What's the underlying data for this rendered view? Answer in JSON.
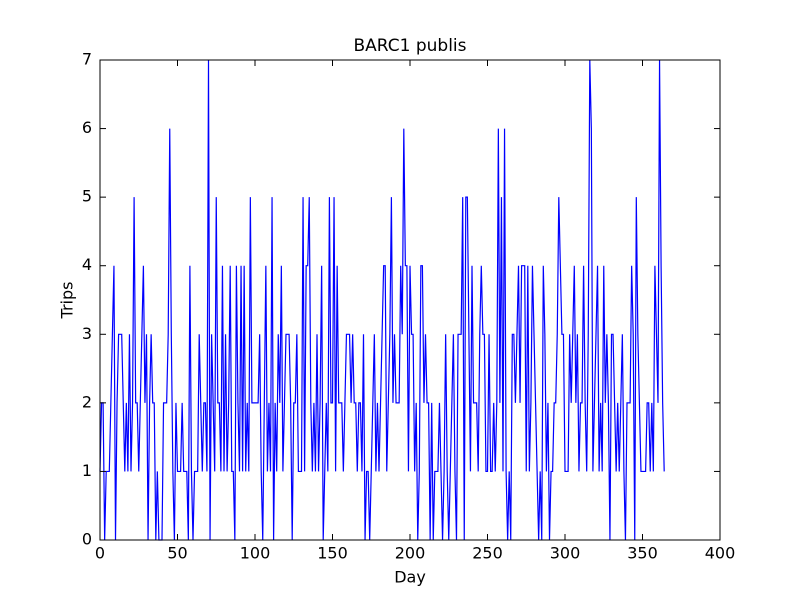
{
  "chart_data": {
    "type": "line",
    "title": "BARC1 publis",
    "x_label": "Day",
    "y_label": "Trips",
    "color": "#0000ff",
    "xlim": [
      0,
      400
    ],
    "xticks": [
      0,
      50,
      100,
      150,
      200,
      250,
      300,
      350,
      400
    ],
    "ylim": [
      0,
      7
    ],
    "yticks": [
      0,
      1,
      2,
      3,
      4,
      5,
      6,
      7
    ],
    "x": [
      0,
      1,
      2,
      3,
      4,
      5,
      6,
      7,
      8,
      9,
      10,
      11,
      12,
      13,
      14,
      15,
      16,
      17,
      18,
      19,
      20,
      21,
      22,
      23,
      24,
      25,
      26,
      27,
      28,
      29,
      30,
      31,
      32,
      33,
      34,
      35,
      36,
      37,
      38,
      39,
      40,
      41,
      42,
      43,
      44,
      45,
      46,
      47,
      48,
      49,
      50,
      51,
      52,
      53,
      54,
      55,
      56,
      57,
      58,
      59,
      60,
      61,
      62,
      63,
      64,
      65,
      66,
      67,
      68,
      69,
      70,
      71,
      72,
      73,
      74,
      75,
      76,
      77,
      78,
      79,
      80,
      81,
      82,
      83,
      84,
      85,
      86,
      87,
      88,
      89,
      90,
      91,
      92,
      93,
      94,
      95,
      96,
      97,
      98,
      99,
      100,
      101,
      102,
      103,
      104,
      105,
      106,
      107,
      108,
      109,
      110,
      111,
      112,
      113,
      114,
      115,
      116,
      117,
      118,
      119,
      120,
      121,
      122,
      123,
      124,
      125,
      126,
      127,
      128,
      129,
      130,
      131,
      132,
      133,
      134,
      135,
      136,
      137,
      138,
      139,
      140,
      141,
      142,
      143,
      144,
      145,
      146,
      147,
      148,
      149,
      150,
      151,
      152,
      153,
      154,
      155,
      156,
      157,
      158,
      159,
      160,
      161,
      162,
      163,
      164,
      165,
      166,
      167,
      168,
      169,
      170,
      171,
      172,
      173,
      174,
      175,
      176,
      177,
      178,
      179,
      180,
      181,
      182,
      183,
      184,
      185,
      186,
      187,
      188,
      189,
      190,
      191,
      192,
      193,
      194,
      195,
      196,
      197,
      198,
      199,
      200,
      201,
      202,
      203,
      204,
      205,
      206,
      207,
      208,
      209,
      210,
      211,
      212,
      213,
      214,
      215,
      216,
      217,
      218,
      219,
      220,
      221,
      222,
      223,
      224,
      225,
      226,
      227,
      228,
      229,
      230,
      231,
      232,
      233,
      234,
      235,
      236,
      237,
      238,
      239,
      240,
      241,
      242,
      243,
      244,
      245,
      246,
      247,
      248,
      249,
      250,
      251,
      252,
      253,
      254,
      255,
      256,
      257,
      258,
      259,
      260,
      261,
      262,
      263,
      264,
      265,
      266,
      267,
      268,
      269,
      270,
      271,
      272,
      273,
      274,
      275,
      276,
      277,
      278,
      279,
      280,
      281,
      282,
      283,
      284,
      285,
      286,
      287,
      288,
      289,
      290,
      291,
      292,
      293,
      294,
      295,
      296,
      297,
      298,
      299,
      300,
      301,
      302,
      303,
      304,
      305,
      306,
      307,
      308,
      309,
      310,
      311,
      312,
      313,
      314,
      315,
      316,
      317,
      318,
      319,
      320,
      321,
      322,
      323,
      324,
      325,
      326,
      327,
      328,
      329,
      330,
      331,
      332,
      333,
      334,
      335,
      336,
      337,
      338,
      339,
      340,
      341,
      342,
      343,
      344,
      345,
      346,
      347,
      348,
      349,
      350,
      351,
      352,
      353,
      354,
      355,
      356,
      357,
      358,
      359,
      360,
      361,
      362,
      363,
      364
    ],
    "values": [
      1,
      2,
      2,
      0,
      1,
      1,
      1,
      2,
      3,
      4,
      0,
      2,
      3,
      3,
      3,
      2,
      1,
      2,
      1,
      3,
      1,
      2,
      5,
      2,
      2,
      1,
      2,
      3,
      4,
      2,
      3,
      0,
      2,
      3,
      2,
      2,
      0,
      1,
      0,
      0,
      0,
      2,
      2,
      2,
      3,
      6,
      3,
      1,
      0,
      2,
      1,
      1,
      1,
      2,
      1,
      1,
      1,
      0,
      4,
      1,
      0,
      1,
      1,
      1,
      3,
      2,
      1,
      2,
      2,
      1,
      7,
      0,
      3,
      2,
      1,
      5,
      2,
      2,
      1,
      4,
      1,
      3,
      1,
      2,
      4,
      1,
      1,
      0,
      4,
      2,
      1,
      4,
      1,
      4,
      1,
      2,
      1,
      5,
      2,
      2,
      2,
      2,
      2,
      3,
      1,
      0,
      2,
      4,
      1,
      2,
      1,
      5,
      0,
      2,
      1,
      3,
      2,
      4,
      1,
      2,
      3,
      3,
      3,
      2,
      0,
      2,
      2,
      3,
      1,
      1,
      1,
      5,
      1,
      4,
      4,
      5,
      2,
      1,
      2,
      1,
      3,
      1,
      2,
      4,
      0,
      1,
      2,
      1,
      5,
      2,
      2,
      5,
      1,
      4,
      2,
      2,
      2,
      1,
      2,
      3,
      3,
      3,
      2,
      3,
      2,
      2,
      1,
      2,
      2,
      1,
      3,
      0,
      1,
      1,
      0,
      1,
      2,
      3,
      1,
      2,
      1,
      2,
      3,
      4,
      4,
      1,
      2,
      3,
      5,
      2,
      3,
      2,
      2,
      2,
      4,
      3,
      6,
      4,
      4,
      1,
      4,
      3,
      3,
      1,
      2,
      0,
      1,
      4,
      4,
      2,
      3,
      2,
      2,
      0,
      2,
      0,
      1,
      1,
      1,
      2,
      1,
      0,
      1,
      3,
      1,
      0,
      1,
      2,
      3,
      1,
      0,
      3,
      3,
      3,
      5,
      0,
      5,
      5,
      3,
      1,
      4,
      2,
      2,
      2,
      1,
      3,
      4,
      3,
      3,
      1,
      1,
      3,
      1,
      1,
      2,
      1,
      2,
      6,
      2,
      5,
      1,
      6,
      1,
      0,
      1,
      0,
      3,
      3,
      2,
      3,
      4,
      2,
      4,
      4,
      4,
      1,
      4,
      1,
      2,
      4,
      3,
      2,
      1,
      0,
      1,
      0,
      4,
      3,
      1,
      2,
      0,
      1,
      1,
      2,
      2,
      3,
      5,
      4,
      3,
      3,
      1,
      1,
      1,
      3,
      2,
      3,
      4,
      2,
      3,
      1,
      2,
      2,
      4,
      2,
      1,
      3,
      7,
      6,
      1,
      2,
      3,
      4,
      1,
      2,
      1,
      4,
      2,
      3,
      2,
      0,
      3,
      3,
      2,
      1,
      2,
      1,
      2,
      3,
      1,
      0,
      2,
      2,
      2,
      4,
      3,
      0,
      5,
      3,
      2,
      1,
      1,
      1,
      1,
      2,
      2,
      1,
      2,
      1,
      4,
      3,
      2,
      7,
      4,
      2,
      1
    ]
  }
}
